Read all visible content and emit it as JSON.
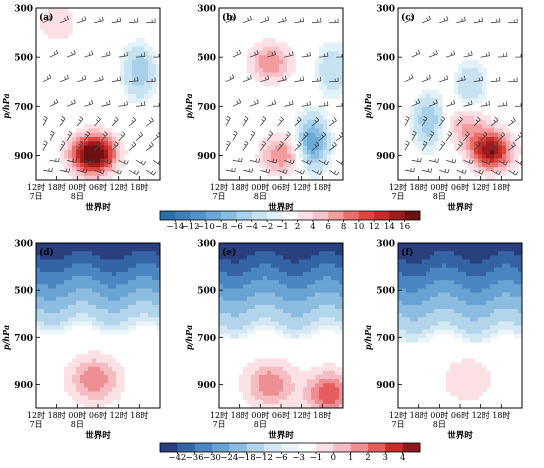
{
  "figure": {
    "panel_labels": [
      "(a)",
      "(b)",
      "(c)",
      "(d)",
      "(e)",
      "(f)"
    ],
    "ylabel": "p/hPa",
    "yticks": [
      "300",
      "500",
      "700",
      "900"
    ],
    "xticks_time": [
      "12时",
      "18时",
      "00时",
      "06时",
      "12时",
      "18时"
    ],
    "xticks_date": [
      "7日",
      "8日"
    ],
    "xlabel": "世界时"
  },
  "colorbar_top": {
    "labels": [
      "−14",
      "−12",
      "−10",
      "−8",
      "−6",
      "−4",
      "−2",
      "−1",
      "2",
      "4",
      "6",
      "8",
      "10",
      "12",
      "14",
      "16"
    ],
    "colors": [
      "#2c6ea8",
      "#3d80bc",
      "#5194c9",
      "#6aa9d6",
      "#86bde1",
      "#a7d0ea",
      "#c7e2f1",
      "#e3f1f8",
      "#ffffff",
      "#fbe0e4",
      "#f7c2c9",
      "#f29c9d",
      "#ea6e6d",
      "#de4640",
      "#c42c2c",
      "#9e1b1e",
      "#6e1012"
    ]
  },
  "colorbar_bottom": {
    "labels": [
      "−42",
      "−36",
      "−30",
      "−24",
      "−18",
      "−12",
      "−6",
      "−3",
      "−1",
      "0",
      "1",
      "2",
      "3",
      "4"
    ],
    "colors": [
      "#2a3f7e",
      "#3463a6",
      "#4a86c1",
      "#68a3d3",
      "#8cbde0",
      "#b2d5eb",
      "#d3e8f3",
      "#eaf4f9",
      "#ffffff",
      "#fbe0e4",
      "#f5bcc4",
      "#ee8f93",
      "#e35e5c",
      "#c92c2a",
      "#8b1a1a"
    ]
  },
  "chart_data": [
    {
      "panel": "(a)",
      "type": "heatmap",
      "ylabel": "p/hPa",
      "xlabel": "世界时",
      "y_range_hPa": [
        300,
        1000
      ],
      "y_inverted": true,
      "x_ticks": [
        "12时 7日",
        "18时",
        "00时 8日",
        "06时",
        "12时",
        "18时"
      ],
      "colorbar": "colorbar_top",
      "overlay": "wind barbs",
      "features": [
        {
          "kind": "warm",
          "time_center_h": 15.5,
          "p_center": 900,
          "peak": 12
        },
        {
          "kind": "warm",
          "time_center_h": 18,
          "p_center": 890,
          "peak": 10
        },
        {
          "kind": "cool",
          "time_center_h": 30,
          "p_center": 560,
          "peak": -6
        },
        {
          "kind": "warm",
          "time_center_h": 6,
          "p_center": 360,
          "peak": 4
        }
      ]
    },
    {
      "panel": "(b)",
      "type": "heatmap",
      "ylabel": "p/hPa",
      "xlabel": "世界时",
      "y_range_hPa": [
        300,
        1000
      ],
      "y_inverted": true,
      "x_ticks": [
        "12时 7日",
        "18时",
        "00时 8日",
        "06时",
        "12时",
        "18时"
      ],
      "colorbar": "colorbar_top",
      "overlay": "wind barbs",
      "features": [
        {
          "kind": "warm",
          "time_center_h": 15,
          "p_center": 520,
          "peak": 8
        },
        {
          "kind": "warm",
          "time_center_h": 18,
          "p_center": 900,
          "peak": 8
        },
        {
          "kind": "cool",
          "time_center_h": 27,
          "p_center": 850,
          "peak": -10
        },
        {
          "kind": "cool",
          "time_center_h": 33,
          "p_center": 550,
          "peak": -4
        }
      ]
    },
    {
      "panel": "(c)",
      "type": "heatmap",
      "ylabel": "p/hPa",
      "xlabel": "世界时",
      "y_range_hPa": [
        300,
        1000
      ],
      "y_inverted": true,
      "x_ticks": [
        "12时 7日",
        "18时",
        "00时 8日",
        "06时",
        "12时",
        "18时"
      ],
      "colorbar": "colorbar_top",
      "overlay": "wind barbs",
      "features": [
        {
          "kind": "warm",
          "time_center_h": 27,
          "p_center": 880,
          "peak": 16
        },
        {
          "kind": "warm",
          "time_center_h": 20,
          "p_center": 780,
          "peak": 6
        },
        {
          "kind": "cool",
          "time_center_h": 9,
          "p_center": 760,
          "peak": -6
        },
        {
          "kind": "cool",
          "time_center_h": 21,
          "p_center": 620,
          "peak": -4
        }
      ]
    },
    {
      "panel": "(d)",
      "type": "heatmap",
      "ylabel": "p/hPa",
      "xlabel": "世界时",
      "y_range_hPa": [
        300,
        1000
      ],
      "y_inverted": true,
      "x_ticks": [
        "12时 7日",
        "18时",
        "00时 8日",
        "06时",
        "12时",
        "18时"
      ],
      "colorbar": "colorbar_bottom",
      "features": [
        {
          "kind": "negative gradient",
          "p_top": 300,
          "value_top": -42,
          "p_zero": 680
        },
        {
          "kind": "warm",
          "time_center_h": 17,
          "p_center": 880,
          "peak": 3
        }
      ]
    },
    {
      "panel": "(e)",
      "type": "heatmap",
      "ylabel": "p/hPa",
      "xlabel": "世界时",
      "y_range_hPa": [
        300,
        1000
      ],
      "y_inverted": true,
      "x_ticks": [
        "12时 7日",
        "18时",
        "00时 8日",
        "06时",
        "12时",
        "18时"
      ],
      "colorbar": "colorbar_bottom",
      "features": [
        {
          "kind": "negative gradient",
          "p_top": 300,
          "value_top": -42,
          "p_zero": 700
        },
        {
          "kind": "warm",
          "time_center_h": 32,
          "p_center": 940,
          "peak": 4
        },
        {
          "kind": "warm",
          "time_center_h": 15,
          "p_center": 900,
          "peak": 3
        }
      ]
    },
    {
      "panel": "(f)",
      "type": "heatmap",
      "ylabel": "p/hPa",
      "xlabel": "世界时",
      "y_range_hPa": [
        300,
        1000
      ],
      "y_inverted": true,
      "x_ticks": [
        "12时 7日",
        "18时",
        "00时 8日",
        "06时",
        "12时",
        "18时"
      ],
      "colorbar": "colorbar_bottom",
      "features": [
        {
          "kind": "negative gradient",
          "p_top": 300,
          "value_top": -42,
          "p_zero": 720
        },
        {
          "kind": "warm",
          "time_center_h": 20,
          "p_center": 880,
          "peak": 1
        }
      ]
    }
  ]
}
